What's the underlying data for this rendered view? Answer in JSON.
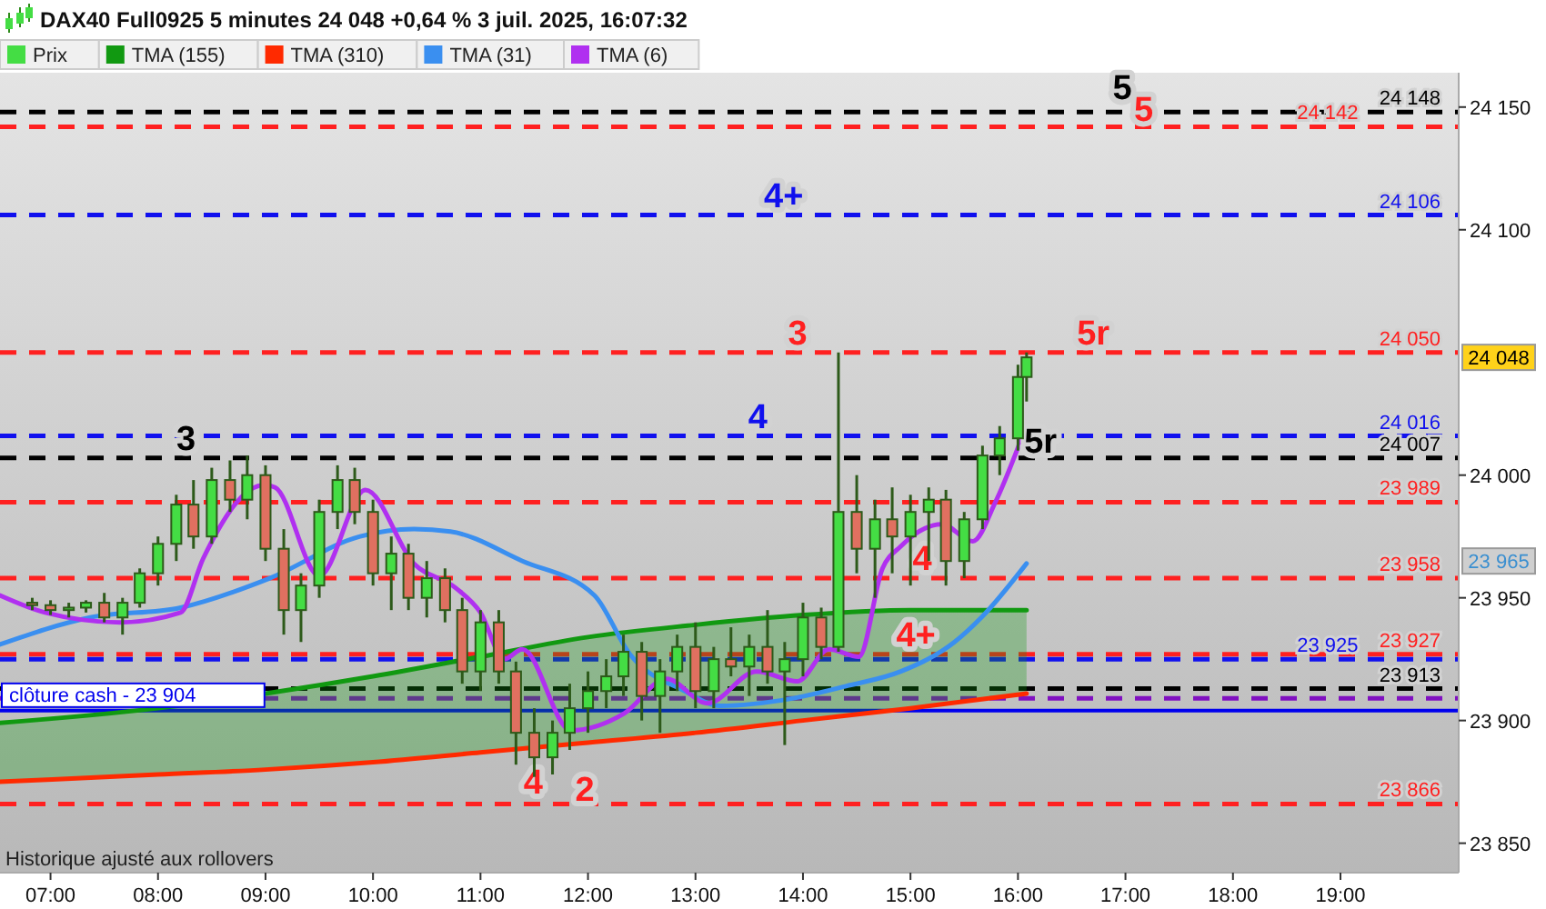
{
  "chart_data": {
    "type": "candlestick",
    "title": "DAX40 Full0925 5 minutes 24 048 +0,64 % 3 juil. 2025, 16:07:32",
    "xlim": [
      6.53,
      20.1
    ],
    "xticks": [
      {
        "value": 7,
        "label": "07:00"
      },
      {
        "value": 8,
        "label": "08:00"
      },
      {
        "value": 9,
        "label": "09:00"
      },
      {
        "value": 10,
        "label": "10:00"
      },
      {
        "value": 11,
        "label": "11:00"
      },
      {
        "value": 12,
        "label": "12:00"
      },
      {
        "value": 13,
        "label": "13:00"
      },
      {
        "value": 14,
        "label": "14:00"
      },
      {
        "value": 15,
        "label": "15:00"
      },
      {
        "value": 16,
        "label": "16:00"
      },
      {
        "value": 17,
        "label": "17:00"
      },
      {
        "value": 18,
        "label": "18:00"
      },
      {
        "value": 19,
        "label": "19:00"
      }
    ],
    "ylim": [
      23838,
      24164
    ],
    "yticks": [
      {
        "value": 23850,
        "label": "23 850"
      },
      {
        "value": 23900,
        "label": "23 900"
      },
      {
        "value": 23950,
        "label": "23 950"
      },
      {
        "value": 24000,
        "label": "24 000"
      },
      {
        "value": 24100,
        "label": "24 100"
      },
      {
        "value": 24150,
        "label": "24 150"
      }
    ],
    "legend": "top left",
    "grid": false,
    "line_style": "solid",
    "marker": "none",
    "series": [
      {
        "name": "Prix",
        "color": "#44dd44",
        "x": [
          6.83,
          7.0,
          7.17,
          7.33,
          7.5,
          7.67,
          7.83,
          8.0,
          8.17,
          8.33,
          8.5,
          8.67,
          8.83,
          9.0,
          9.17,
          9.33,
          9.5,
          9.67,
          9.83,
          10.0,
          10.17,
          10.33,
          10.5,
          10.67,
          10.83,
          11.0,
          11.17,
          11.33,
          11.5,
          11.67,
          11.83,
          12.0,
          12.17,
          12.33,
          12.5,
          12.67,
          12.83,
          13.0,
          13.17,
          13.33,
          13.5,
          13.67,
          13.83,
          14.0,
          14.17,
          14.33,
          14.5,
          14.67,
          14.83,
          15.0,
          15.17,
          15.33,
          15.5,
          15.67,
          15.83,
          16.0,
          16.08
        ],
        "ohlc": [
          [
            23948,
            23950,
            23945,
            23947
          ],
          [
            23947,
            23949,
            23943,
            23945
          ],
          [
            23945,
            23948,
            23942,
            23946
          ],
          [
            23946,
            23949,
            23944,
            23948
          ],
          [
            23948,
            23952,
            23940,
            23942
          ],
          [
            23942,
            23950,
            23935,
            23948
          ],
          [
            23948,
            23962,
            23946,
            23960
          ],
          [
            23960,
            23975,
            23955,
            23972
          ],
          [
            23972,
            23992,
            23965,
            23988
          ],
          [
            23988,
            23998,
            23970,
            23975
          ],
          [
            23975,
            24003,
            23972,
            23998
          ],
          [
            23998,
            24006,
            23985,
            23990
          ],
          [
            23990,
            24008,
            23982,
            24000
          ],
          [
            24000,
            24004,
            23965,
            23970
          ],
          [
            23970,
            23978,
            23935,
            23945
          ],
          [
            23945,
            23960,
            23932,
            23955
          ],
          [
            23955,
            23990,
            23950,
            23985
          ],
          [
            23985,
            24004,
            23978,
            23998
          ],
          [
            23998,
            24003,
            23980,
            23985
          ],
          [
            23985,
            23990,
            23955,
            23960
          ],
          [
            23960,
            23975,
            23945,
            23968
          ],
          [
            23968,
            23972,
            23945,
            23950
          ],
          [
            23950,
            23965,
            23942,
            23958
          ],
          [
            23958,
            23962,
            23940,
            23945
          ],
          [
            23945,
            23950,
            23915,
            23920
          ],
          [
            23920,
            23945,
            23912,
            23940
          ],
          [
            23940,
            23945,
            23915,
            23920
          ],
          [
            23920,
            23924,
            23882,
            23895
          ],
          [
            23895,
            23905,
            23877,
            23885
          ],
          [
            23885,
            23900,
            23878,
            23895
          ],
          [
            23895,
            23915,
            23888,
            23905
          ],
          [
            23905,
            23920,
            23895,
            23912
          ],
          [
            23912,
            23925,
            23905,
            23918
          ],
          [
            23918,
            23935,
            23910,
            23928
          ],
          [
            23928,
            23932,
            23900,
            23910
          ],
          [
            23910,
            23925,
            23895,
            23920
          ],
          [
            23920,
            23935,
            23912,
            23930
          ],
          [
            23930,
            23940,
            23905,
            23912
          ],
          [
            23912,
            23930,
            23905,
            23925
          ],
          [
            23925,
            23938,
            23918,
            23922
          ],
          [
            23922,
            23935,
            23910,
            23930
          ],
          [
            23930,
            23945,
            23915,
            23920
          ],
          [
            23920,
            23932,
            23890,
            23925
          ],
          [
            23925,
            23948,
            23918,
            23942
          ],
          [
            23942,
            23946,
            23925,
            23930
          ],
          [
            23930,
            24050,
            23928,
            23985
          ],
          [
            23985,
            24000,
            23960,
            23970
          ],
          [
            23970,
            23990,
            23950,
            23982
          ],
          [
            23982,
            23995,
            23960,
            23975
          ],
          [
            23975,
            23992,
            23955,
            23985
          ],
          [
            23985,
            23995,
            23965,
            23990
          ],
          [
            23990,
            23994,
            23955,
            23965
          ],
          [
            23965,
            23985,
            23958,
            23982
          ],
          [
            23982,
            24012,
            23978,
            24008
          ],
          [
            24008,
            24020,
            24000,
            24015
          ],
          [
            24015,
            24045,
            24010,
            24040
          ],
          [
            24040,
            24050,
            24030,
            24048
          ]
        ],
        "colors": [
          "#e07060",
          "#e07060",
          "#44dd44",
          "#44dd44",
          "#e07060",
          "#44dd44",
          "#44dd44",
          "#44dd44",
          "#44dd44",
          "#e07060",
          "#44dd44",
          "#e07060",
          "#44dd44",
          "#e07060",
          "#e07060",
          "#44dd44",
          "#44dd44",
          "#44dd44",
          "#e07060",
          "#e07060",
          "#44dd44",
          "#e07060",
          "#44dd44",
          "#e07060",
          "#e07060",
          "#44dd44",
          "#e07060",
          "#e07060",
          "#e07060",
          "#44dd44",
          "#44dd44",
          "#44dd44",
          "#44dd44",
          "#44dd44",
          "#e07060",
          "#44dd44",
          "#44dd44",
          "#e07060",
          "#44dd44",
          "#e07060",
          "#44dd44",
          "#e07060",
          "#44dd44",
          "#44dd44",
          "#e07060",
          "#44dd44",
          "#e07060",
          "#44dd44",
          "#e07060",
          "#44dd44",
          "#44dd44",
          "#e07060",
          "#44dd44",
          "#44dd44",
          "#44dd44",
          "#44dd44",
          "#44dd44"
        ]
      },
      {
        "name": "TMA (155)",
        "type": "line",
        "color": "#119911",
        "x": [
          6.53,
          8,
          9,
          10,
          11,
          12,
          13,
          14,
          15,
          16.08
        ],
        "values": [
          23899,
          23905,
          23911,
          23918,
          23926,
          23934,
          23939,
          23943,
          23945,
          23945
        ],
        "lower": [
          23875,
          23878,
          23880,
          23883,
          23887,
          23891,
          23895,
          23900,
          23905,
          23911
        ],
        "upper": [
          23899,
          23905,
          23911,
          23918,
          23926,
          23934,
          23939,
          23943,
          23945,
          23945
        ]
      },
      {
        "name": "TMA (310)",
        "type": "line",
        "color": "#ff2a00",
        "x": [
          6.53,
          8,
          9,
          10,
          11,
          12,
          13,
          14,
          15,
          16.08
        ],
        "values": [
          23875,
          23878,
          23880,
          23883,
          23887,
          23891,
          23895,
          23900,
          23905,
          23911
        ]
      },
      {
        "name": "TMA (31)",
        "type": "line",
        "color": "#3a8ff0",
        "x": [
          6.53,
          7.37,
          8.21,
          9.04,
          9.88,
          10.38,
          10.72,
          11.39,
          12.06,
          12.39,
          12.9,
          13.23,
          13.9,
          14.4,
          14.91,
          15.41,
          15.66,
          16.08
        ],
        "values": [
          23931,
          23942,
          23946,
          23958,
          23975,
          23978,
          23977,
          23965,
          23951,
          23927,
          23912,
          23906,
          23909,
          23914,
          23920,
          23932,
          23942,
          23964
        ]
      },
      {
        "name": "TMA (6)",
        "type": "line",
        "color": "#b030f0",
        "x": [
          6.53,
          6.95,
          7.65,
          8.21,
          8.42,
          8.99,
          9.09,
          9.5,
          9.93,
          10.38,
          10.77,
          11.0,
          11.22,
          11.39,
          11.84,
          12.34,
          12.73,
          13.11,
          13.57,
          13.95,
          14.24,
          14.52,
          14.74,
          14.91,
          15.29,
          15.58,
          15.79,
          16.05
        ],
        "values": [
          23951,
          23944,
          23940,
          23944,
          23966,
          23996,
          23995,
          23959,
          23994,
          23964,
          23954,
          23944,
          23925,
          23929,
          23896,
          23903,
          23917,
          23907,
          23920,
          23916,
          23929,
          23926,
          23962,
          23971,
          23980,
          23973,
          23989,
          24017
        ]
      }
    ],
    "ref_lines": [
      {
        "axis": "y",
        "value": 24148,
        "label": "24 148",
        "color": "#000000",
        "line_style": "dashed"
      },
      {
        "axis": "y",
        "value": 24142,
        "label": "24 142",
        "color": "#ff2020",
        "line_style": "dashed"
      },
      {
        "axis": "y",
        "value": 24106,
        "label": "24 106",
        "color": "#1010ee",
        "line_style": "dashed"
      },
      {
        "axis": "y",
        "value": 24050,
        "label": "24 050",
        "color": "#ff2020",
        "line_style": "dashed"
      },
      {
        "axis": "y",
        "value": 24016,
        "label": "24 016",
        "color": "#1010ee",
        "line_style": "dashed"
      },
      {
        "axis": "y",
        "value": 24007,
        "label": "24 007",
        "color": "#000000",
        "line_style": "dashed"
      },
      {
        "axis": "y",
        "value": 23989,
        "label": "23 989",
        "color": "#ff2020",
        "line_style": "dashed"
      },
      {
        "axis": "y",
        "value": 23958,
        "label": "23 958",
        "color": "#ff2020",
        "line_style": "dashed"
      },
      {
        "axis": "y",
        "value": 23927,
        "label": "23 927",
        "color": "#ff2020",
        "line_style": "dashed"
      },
      {
        "axis": "y",
        "value": 23925,
        "label": "23 925",
        "color": "#1010ee",
        "line_style": "dashed"
      },
      {
        "axis": "y",
        "value": 23913,
        "label": "23 913",
        "color": "#000000",
        "line_style": "dashed"
      },
      {
        "axis": "y",
        "value": 23909,
        "label": null,
        "color": "#8010c0",
        "line_style": "dashed"
      },
      {
        "axis": "y",
        "value": 23904,
        "label": "clôture cash -  23 904",
        "color": "#0000ee",
        "line_style": "solid"
      },
      {
        "axis": "y",
        "value": 23866,
        "label": "23 866",
        "color": "#ff2020",
        "line_style": "dashed"
      }
    ],
    "annotations": [
      {
        "text": "5",
        "x": 16.97,
        "y": 24151
      },
      {
        "text": "5",
        "x": 17.17,
        "y": 24142
      },
      {
        "text": "4+",
        "x": 13.82,
        "y": 24107
      },
      {
        "text": "3",
        "x": 13.95,
        "y": 24051
      },
      {
        "text": "5r",
        "x": 16.7,
        "y": 24051
      },
      {
        "text": "4",
        "x": 13.58,
        "y": 24017
      },
      {
        "text": "3",
        "x": 8.26,
        "y": 24008
      },
      {
        "text": "5r",
        "x": 16.21,
        "y": 24007
      },
      {
        "text": "4",
        "x": 15.11,
        "y": 23959
      },
      {
        "text": "4+",
        "x": 15.05,
        "y": 23928
      },
      {
        "text": "4",
        "x": 11.49,
        "y": 23868
      },
      {
        "text": "2",
        "x": 11.97,
        "y": 23865
      },
      {
        "text": "24 048",
        "y": 24048
      },
      {
        "text": "23 965",
        "y": 23965
      },
      "Historique ajusté aux rollovers"
    ]
  }
}
